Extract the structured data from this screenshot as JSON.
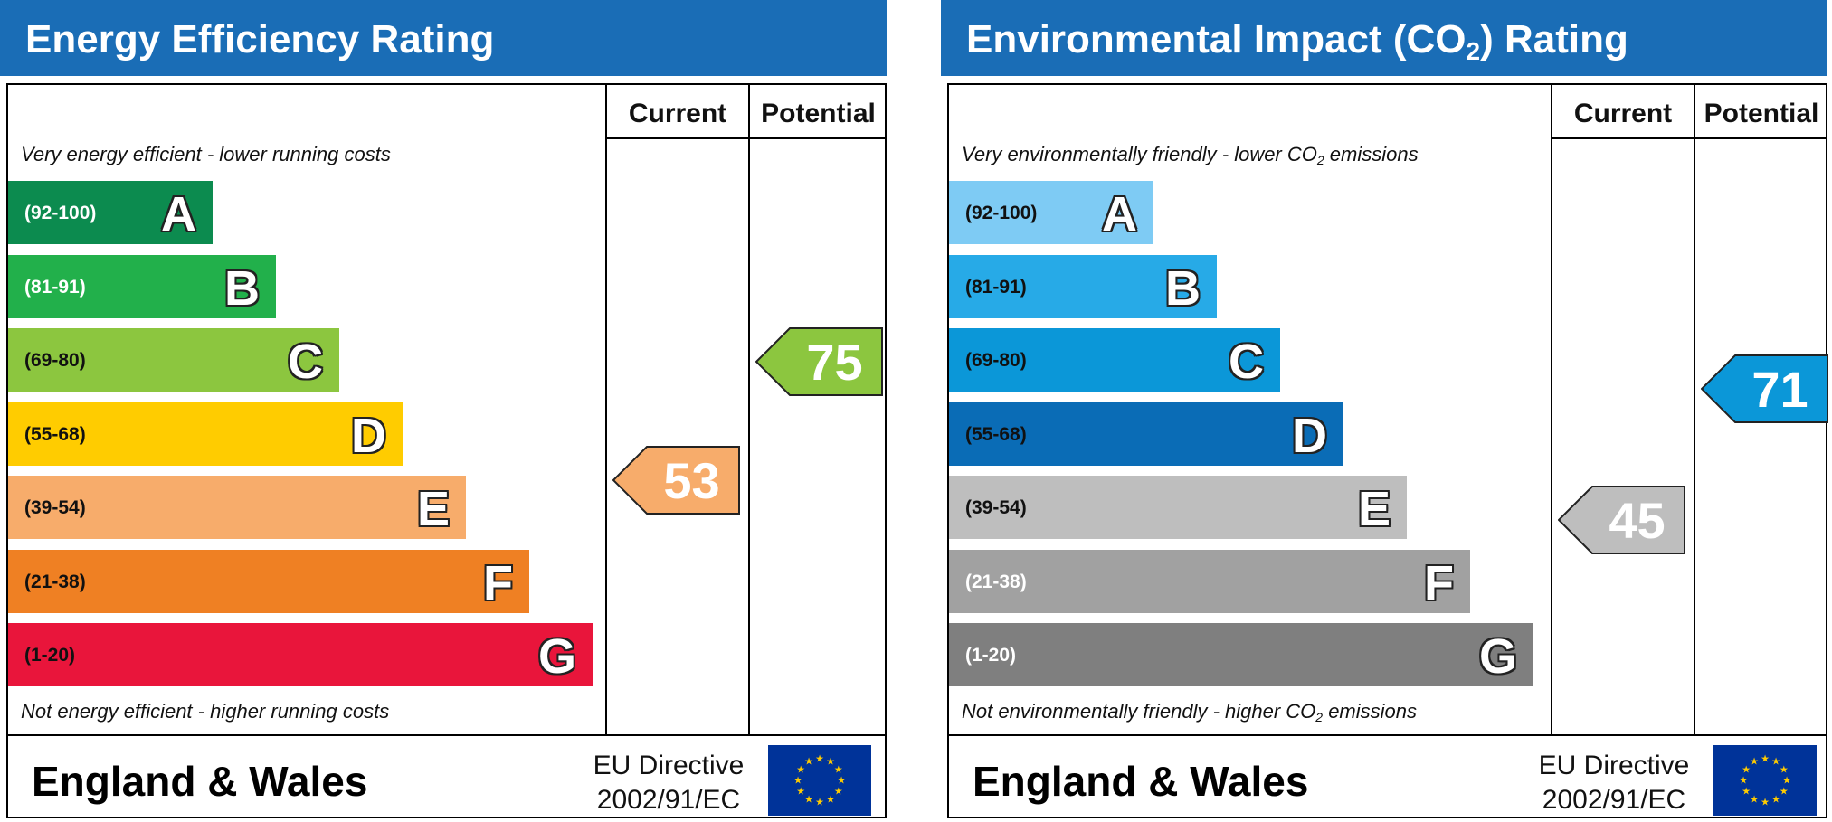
{
  "chart_data": [
    {
      "type": "bar",
      "title": "Energy Efficiency Rating",
      "columns": [
        "Current",
        "Potential"
      ],
      "top_note": "Very energy efficient - lower running costs",
      "bottom_note": "Not energy efficient - higher running costs",
      "bands": [
        {
          "letter": "A",
          "range": "(92-100)",
          "min": 92,
          "max": 100,
          "color": "#0c8b4f",
          "range_color": "#ffffff"
        },
        {
          "letter": "B",
          "range": "(81-91)",
          "min": 81,
          "max": 91,
          "color": "#22b04b",
          "range_color": "#ffffff"
        },
        {
          "letter": "C",
          "range": "(69-80)",
          "min": 69,
          "max": 80,
          "color": "#8cc63f",
          "range_color": "#111111"
        },
        {
          "letter": "D",
          "range": "(55-68)",
          "min": 55,
          "max": 68,
          "color": "#ffcc00",
          "range_color": "#111111"
        },
        {
          "letter": "E",
          "range": "(39-54)",
          "min": 39,
          "max": 54,
          "color": "#f7ac6b",
          "range_color": "#111111"
        },
        {
          "letter": "F",
          "range": "(21-38)",
          "min": 21,
          "max": 38,
          "color": "#ef8023",
          "range_color": "#111111"
        },
        {
          "letter": "G",
          "range": "(1-20)",
          "min": 1,
          "max": 20,
          "color": "#e9153b",
          "range_color": "#111111"
        }
      ],
      "current": {
        "value": 53,
        "band": "E",
        "color": "#f7ac6b"
      },
      "potential": {
        "value": 75,
        "band": "C",
        "color": "#8cc63f"
      }
    },
    {
      "type": "bar",
      "title": "Environmental Impact (CO",
      "title_sub": "2",
      "title_end": ") Rating",
      "columns": [
        "Current",
        "Potential"
      ],
      "top_note": "Very environmentally friendly - lower CO",
      "top_note_sub": "2",
      "top_note_end": " emissions",
      "bottom_note": "Not environmentally friendly - higher CO",
      "bottom_note_sub": "2",
      "bottom_note_end": " emissions",
      "bands": [
        {
          "letter": "A",
          "range": "(92-100)",
          "min": 92,
          "max": 100,
          "color": "#7ecbf4",
          "range_color": "#111111"
        },
        {
          "letter": "B",
          "range": "(81-91)",
          "min": 81,
          "max": 91,
          "color": "#27aae7",
          "range_color": "#111111"
        },
        {
          "letter": "C",
          "range": "(69-80)",
          "min": 69,
          "max": 80,
          "color": "#0b97d8",
          "range_color": "#111111"
        },
        {
          "letter": "D",
          "range": "(55-68)",
          "min": 55,
          "max": 68,
          "color": "#0a6cb6",
          "range_color": "#111111"
        },
        {
          "letter": "E",
          "range": "(39-54)",
          "min": 39,
          "max": 54,
          "color": "#bebebe",
          "range_color": "#111111"
        },
        {
          "letter": "F",
          "range": "(21-38)",
          "min": 21,
          "max": 38,
          "color": "#a1a1a1",
          "range_color": "#ffffff"
        },
        {
          "letter": "G",
          "range": "(1-20)",
          "min": 1,
          "max": 20,
          "color": "#7f7f7f",
          "range_color": "#ffffff"
        }
      ],
      "current": {
        "value": 45,
        "band": "E",
        "color": "#bebebe"
      },
      "potential": {
        "value": 71,
        "band": "C",
        "color": "#0b97d8"
      }
    }
  ],
  "footer": {
    "region": "England & Wales",
    "directive_line1": "EU Directive",
    "directive_line2": "2002/91/EC",
    "flag_icon": "eu-flag-icon",
    "flag_color": "#003399",
    "star_color": "#ffcc00"
  }
}
